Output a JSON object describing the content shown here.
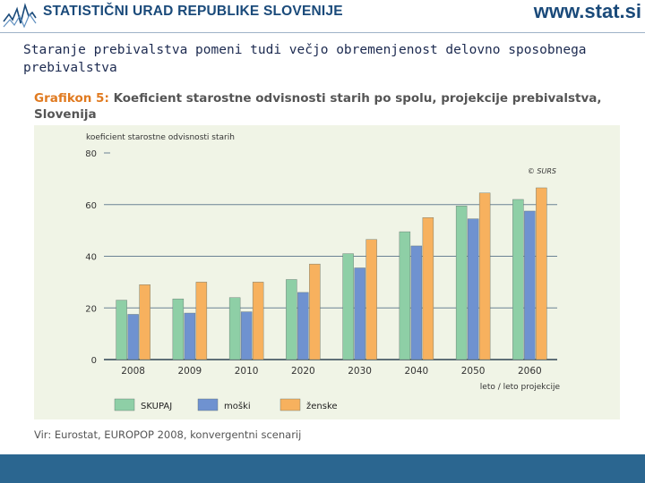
{
  "header": {
    "org_name": "STATISTIČNI URAD REPUBLIKE SLOVENIJE",
    "url": "www.stat.si"
  },
  "slide": {
    "title": "Staranje prebivalstva pomeni tudi večjo obremenjenost delovno sposobnega prebivalstva"
  },
  "chart_heading": {
    "lead": "Grafikon 5:",
    "text": "Koeficient starostne odvisnosti starih po spolu, projekcije prebivalstva, Slovenija"
  },
  "source": "Vir: Eurostat, EUROPOP 2008, konvergentni scenarij",
  "colors": {
    "skupaj": "#8ecfa6",
    "moski": "#6f92d0",
    "zenske": "#f7b15e",
    "grid": "#6b8294",
    "chart_bg": "#f0f4e6",
    "footer": "#2b6690"
  },
  "chart_data": {
    "type": "bar",
    "title": "Koeficient starostne odvisnosti starih po spolu, projekcije prebivalstva, Slovenija",
    "ylabel": "koeficient starostne odvisnosti starih",
    "xlabel": "leto / leto projekcije",
    "ylim": [
      0,
      80
    ],
    "yticks": [
      0,
      20,
      40,
      60,
      80
    ],
    "grid": true,
    "legend_position": "bottom",
    "copyright": "© SURS",
    "categories": [
      "2008",
      "2009",
      "2010",
      "2020",
      "2030",
      "2040",
      "2050",
      "2060"
    ],
    "series": [
      {
        "name": "SKUPAJ",
        "color": "#8ecfa6",
        "values": [
          23,
          23.5,
          24,
          31,
          41,
          49.5,
          59.5,
          62
        ]
      },
      {
        "name": "moški",
        "color": "#6f92d0",
        "values": [
          17.5,
          18,
          18.5,
          26,
          35.5,
          44,
          54.5,
          57.5
        ]
      },
      {
        "name": "ženske",
        "color": "#f7b15e",
        "values": [
          29,
          30,
          30,
          37,
          46.5,
          55,
          64.5,
          66.5
        ]
      }
    ]
  }
}
